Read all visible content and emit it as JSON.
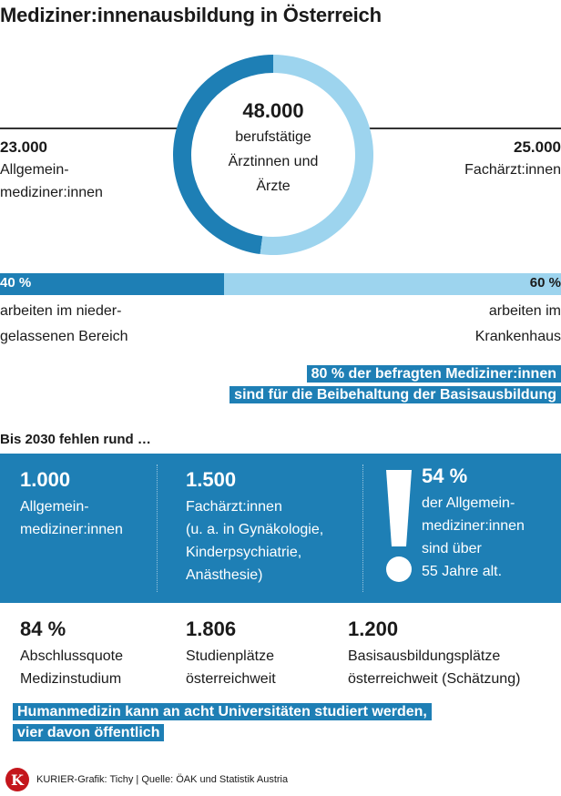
{
  "title": "Mediziner:innenausbildung in Österreich",
  "colors": {
    "dark_blue": "#1e7fb5",
    "light_blue": "#9dd4ee",
    "logo_red": "#c4161c"
  },
  "chart_data": [
    {
      "type": "pie",
      "variant": "donut",
      "center_value": "48.000",
      "center_label_lines": [
        "berufstätige",
        "Ärztinnen und",
        "Ärzte"
      ],
      "slices": [
        {
          "label_lines": [
            "Allgemein-",
            "mediziner:innen"
          ],
          "value_text": "23.000",
          "value": 23000,
          "color": "#1e7fb5"
        },
        {
          "label_lines": [
            "Fachärzt:innen"
          ],
          "value_text": "25.000",
          "value": 25000,
          "color": "#9dd4ee"
        }
      ]
    },
    {
      "type": "bar",
      "variant": "stacked-100",
      "segments": [
        {
          "value_text": "40 %",
          "value": 40,
          "label_lines": [
            "arbeiten im nieder-",
            "gelassenen Bereich"
          ],
          "color": "#1e7fb5"
        },
        {
          "value_text": "60 %",
          "value": 60,
          "label_lines": [
            "arbeiten im",
            "Krankenhaus"
          ],
          "color": "#9dd4ee"
        }
      ]
    }
  ],
  "survey_highlight": [
    "80 % der befragten Mediziner:innen",
    "sind für die Beibehaltung der Basisausbildung"
  ],
  "shortage_heading": "Bis 2030 fehlen rund …",
  "shortage": [
    {
      "value": "1.000",
      "lines": [
        "Allgemein-",
        "mediziner:innen"
      ]
    },
    {
      "value": "1.500",
      "lines": [
        "Fachärzt:innen",
        "(u. a. in Gynäkologie,",
        "Kinderpsychiatrie,",
        "Anästhesie)"
      ]
    },
    {
      "value": "54 %",
      "lines": [
        "der Allgemein-",
        "mediziner:innen",
        "sind über",
        "55 Jahre alt."
      ],
      "icon": "exclamation-icon"
    }
  ],
  "stats": [
    {
      "value": "84 %",
      "lines": [
        "Abschlussquote",
        "Medizinstudium"
      ]
    },
    {
      "value": "1.806",
      "lines": [
        "Studienplätze",
        "österreichweit"
      ]
    },
    {
      "value": "1.200",
      "lines": [
        "Basisausbildungsplätze",
        "österreichweit (Schätzung)"
      ]
    }
  ],
  "university_note": [
    "Humanmedizin kann an acht Universitäten studiert werden,",
    "vier davon öffentlich"
  ],
  "footer": {
    "logo_letter": "K",
    "credit": "KURIER-Grafik: Tichy | Quelle: ÖAK und Statistik Austria"
  }
}
